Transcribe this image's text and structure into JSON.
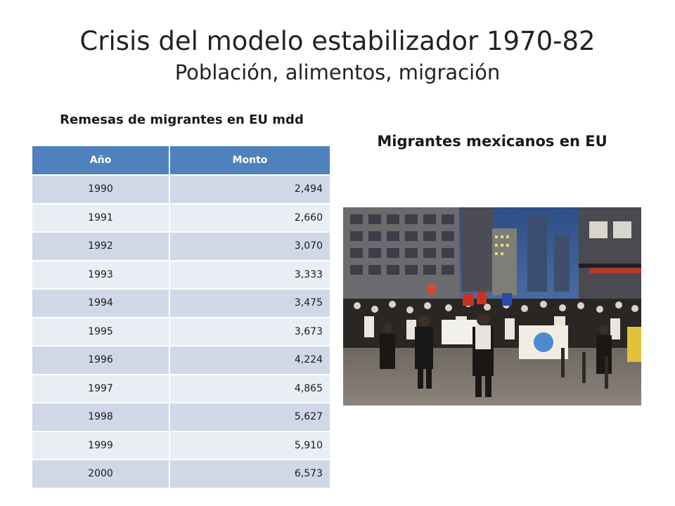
{
  "slide": {
    "title": "Crisis del modelo estabilizador 1970-82",
    "subtitle": "Población, alimentos, migración"
  },
  "table_section": {
    "caption": "Remesas de migrantes en EU mdd",
    "columns": [
      "Año",
      "Monto"
    ],
    "rows": [
      {
        "year": "1990",
        "amount": "2,494"
      },
      {
        "year": "1991",
        "amount": "2,660"
      },
      {
        "year": "1992",
        "amount": "3,070"
      },
      {
        "year": "1993",
        "amount": "3,333"
      },
      {
        "year": "1994",
        "amount": "3,475"
      },
      {
        "year": "1995",
        "amount": "3,673"
      },
      {
        "year": "1996",
        "amount": "4,224"
      },
      {
        "year": "1997",
        "amount": "4,865"
      },
      {
        "year": "1998",
        "amount": "5,627"
      },
      {
        "year": "1999",
        "amount": "5,910"
      },
      {
        "year": "2000",
        "amount": "6,573"
      }
    ],
    "colors": {
      "header": "#4f81bd",
      "row_odd": "#d0d8e8",
      "row_even": "#e9edf4"
    }
  },
  "photo_section": {
    "caption": "Migrantes mexicanos en EU",
    "image": "crowd-of-protesters-photo"
  }
}
